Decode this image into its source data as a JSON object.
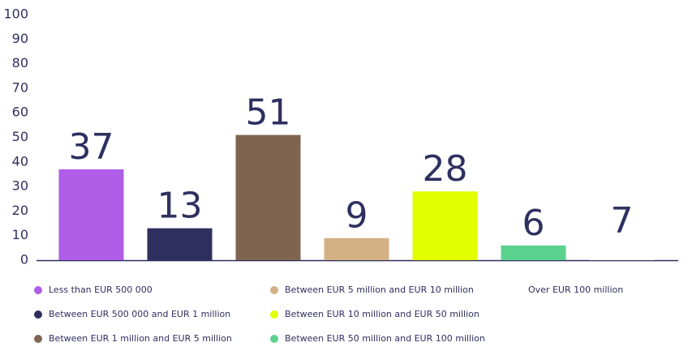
{
  "chart_data": {
    "type": "bar",
    "categories": [
      "Less than EUR 500 000",
      "Between EUR 500 000 and EUR 1 million",
      "Between EUR 1 million and EUR 5 million",
      "Between EUR 5 million and EUR 10 million",
      "Between EUR 10 million and EUR 50 million",
      "Between EUR 50 million and EUR 100 million",
      "Over EUR 100 million"
    ],
    "values": [
      37,
      13,
      51,
      9,
      28,
      6,
      7
    ],
    "colors": [
      "#b05de8",
      "#2e2f5e",
      "#7f6550",
      "#d4b185",
      "#e2ff00",
      "#5ad28e",
      "#ffffff"
    ],
    "ylim": [
      0,
      100
    ],
    "yticks": [
      0,
      10,
      20,
      30,
      40,
      50,
      60,
      70,
      80,
      90,
      100
    ],
    "grid": false
  }
}
